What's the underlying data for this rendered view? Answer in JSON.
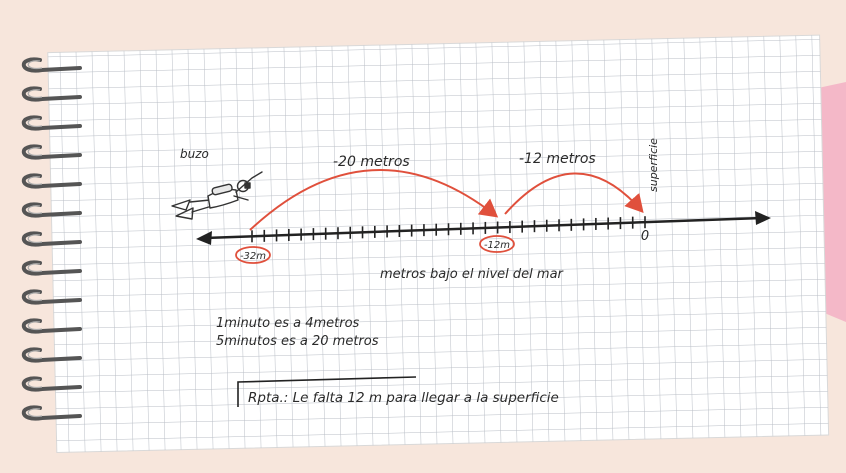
{
  "labels": {
    "diver": "buzo",
    "surface": "superficie",
    "axis_caption": "metros bajo el nivel del mar",
    "jump1": "-20 metros",
    "jump2": "-12 metros",
    "mark_start": "-32m",
    "mark_mid": "-12m",
    "mark_zero": "0"
  },
  "notes": {
    "line1": "1minuto   es a 4metros",
    "line2": "5minutos es a 20 metros"
  },
  "answer": "Rpta.: Le falta 12 m para llegar a la superficie",
  "number_line": {
    "start": -32,
    "end": 0,
    "jumps": [
      {
        "from": -32,
        "to": -12,
        "label_key": "jump1"
      },
      {
        "from": -12,
        "to": 0,
        "label_key": "jump2"
      }
    ]
  },
  "colors": {
    "page_bg": "#f7e6dc",
    "paper": "#ffffff",
    "grid": "#b9bec6",
    "arc": "#e0503c",
    "ink": "#222222",
    "sticky_note": "#f4b8c8",
    "spiral": "#555555"
  },
  "icons": [
    "spiral-binding-icon",
    "diver-icon",
    "arrow-left-icon",
    "arrow-right-icon"
  ]
}
